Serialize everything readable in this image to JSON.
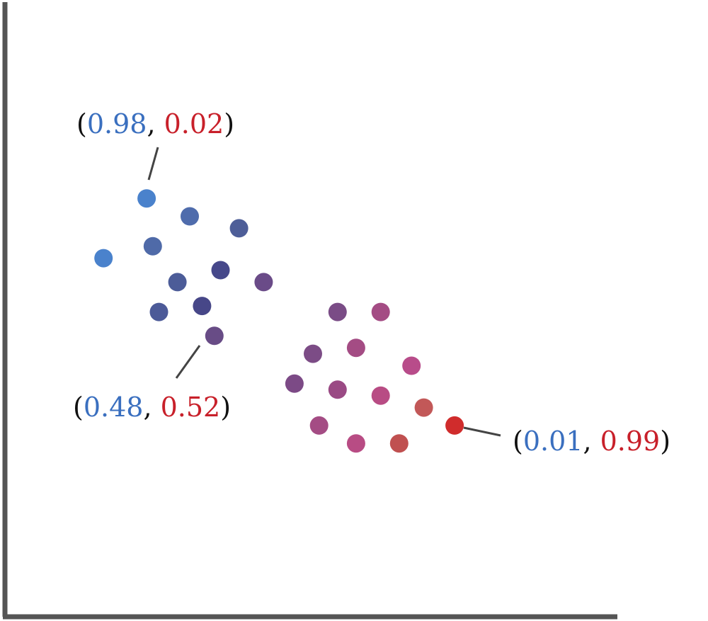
{
  "chart_data": {
    "type": "scatter",
    "title": "",
    "xlabel": "",
    "ylabel": "",
    "grid": false,
    "axes": "left-and-bottom lines only, no ticks",
    "xlim": [
      0,
      10
    ],
    "ylim": [
      0,
      10
    ],
    "color_encoding": "point color blends from blue to red with its probability pair",
    "colors": {
      "blue": "#3a6fbf",
      "red": "#c8202a",
      "axis": "#555555"
    },
    "points": [
      {
        "x": 2.3,
        "y": 7.0,
        "color": "#4a82cc"
      },
      {
        "x": 1.6,
        "y": 6.0,
        "color": "#4a82cc"
      },
      {
        "x": 3.0,
        "y": 6.7,
        "color": "#4f6cac"
      },
      {
        "x": 3.8,
        "y": 6.5,
        "color": "#4e5e98"
      },
      {
        "x": 2.4,
        "y": 6.2,
        "color": "#4f6aa8"
      },
      {
        "x": 2.8,
        "y": 5.6,
        "color": "#4c5c98"
      },
      {
        "x": 3.5,
        "y": 5.8,
        "color": "#46488a"
      },
      {
        "x": 4.2,
        "y": 5.6,
        "color": "#6a4b88"
      },
      {
        "x": 2.5,
        "y": 5.1,
        "color": "#4c5a98"
      },
      {
        "x": 3.2,
        "y": 5.2,
        "color": "#474788"
      },
      {
        "x": 3.4,
        "y": 4.7,
        "color": "#684c86"
      },
      {
        "x": 5.4,
        "y": 5.1,
        "color": "#7a4c86"
      },
      {
        "x": 6.1,
        "y": 5.1,
        "color": "#a44c84"
      },
      {
        "x": 5.7,
        "y": 4.5,
        "color": "#a44c84"
      },
      {
        "x": 5.0,
        "y": 4.4,
        "color": "#7c4c86"
      },
      {
        "x": 6.6,
        "y": 4.2,
        "color": "#b84c8a"
      },
      {
        "x": 4.7,
        "y": 3.9,
        "color": "#7c4a86"
      },
      {
        "x": 5.4,
        "y": 3.8,
        "color": "#9a4a84"
      },
      {
        "x": 6.1,
        "y": 3.7,
        "color": "#b84c84"
      },
      {
        "x": 6.8,
        "y": 3.5,
        "color": "#c25858"
      },
      {
        "x": 5.1,
        "y": 3.2,
        "color": "#a44c84"
      },
      {
        "x": 5.7,
        "y": 2.9,
        "color": "#b84c84"
      },
      {
        "x": 6.4,
        "y": 2.9,
        "color": "#c05050"
      },
      {
        "x": 7.3,
        "y": 3.2,
        "color": "#d02c2c"
      }
    ],
    "annotations": [
      {
        "point_index": 0,
        "blue_value": "0.98",
        "red_value": "0.02"
      },
      {
        "point_index": 10,
        "blue_value": "0.48",
        "red_value": "0.52"
      },
      {
        "point_index": 23,
        "blue_value": "0.01",
        "red_value": "0.99"
      }
    ]
  }
}
